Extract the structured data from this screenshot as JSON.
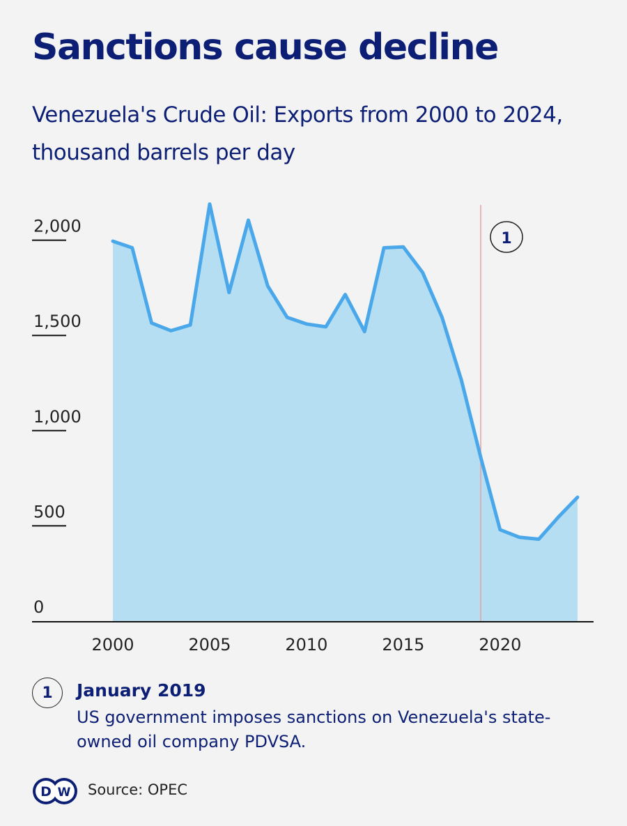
{
  "title": "Sanctions cause decline",
  "subtitle": "Venezuela's Crude Oil: Exports from 2000 to 2024, thousand barrels per day",
  "chart_data": {
    "type": "area",
    "title": "Sanctions cause decline",
    "subtitle": "Venezuela's Crude Oil: Exports from 2000 to 2024, thousand barrels per day",
    "x": [
      2000,
      2001,
      2002,
      2003,
      2004,
      2005,
      2006,
      2007,
      2008,
      2009,
      2010,
      2011,
      2012,
      2013,
      2014,
      2015,
      2016,
      2017,
      2018,
      2019,
      2020,
      2021,
      2022,
      2023,
      2024
    ],
    "values": [
      1995,
      1960,
      1565,
      1525,
      1555,
      2190,
      1725,
      2105,
      1760,
      1595,
      1560,
      1545,
      1715,
      1520,
      1960,
      1965,
      1830,
      1595,
      1265,
      860,
      480,
      440,
      430,
      545,
      650
    ],
    "xlim": [
      2000,
      2024
    ],
    "ylim": [
      0,
      2200
    ],
    "x_ticks": [
      "2000",
      "2005",
      "2010",
      "2015",
      "2020"
    ],
    "y_ticks": [
      "0",
      "500",
      "1,000",
      "1,500",
      "2,000"
    ],
    "y_tick_values": [
      0,
      500,
      1000,
      1500,
      2000
    ],
    "grid": false,
    "line_color": "#4aa8ea",
    "fill_color": "#b6def2",
    "annotation": {
      "marker": "1",
      "x": 2019.0,
      "line_color": "#e3a3a3"
    }
  },
  "note": {
    "marker": "1",
    "date": "January 2019",
    "text": "US government imposes sanctions on Venezuela's state-owned oil company PDVSA."
  },
  "footer": {
    "logo": "DW",
    "source": "Source: OPEC"
  }
}
